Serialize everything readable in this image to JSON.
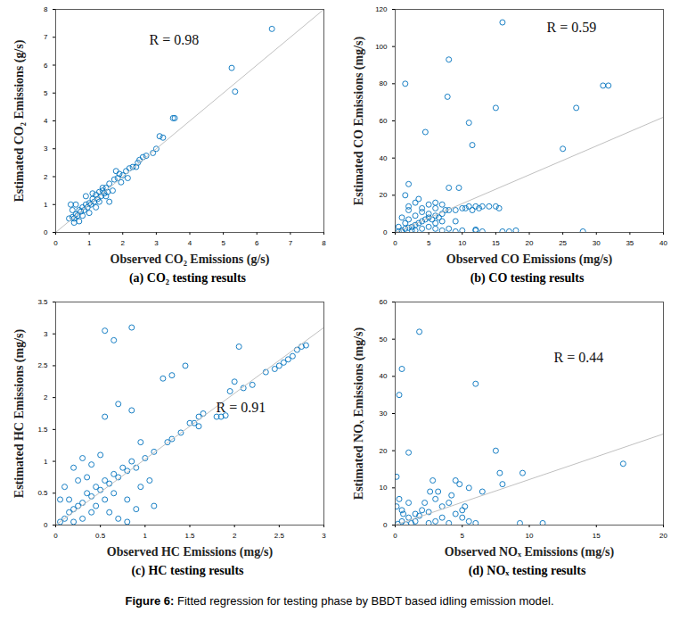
{
  "chart_data": [
    {
      "type": "scatter",
      "title": "(a) CO₂ testing results",
      "x_label": "Observed CO₂ Emissions (g/s)",
      "y_label": "Estimated CO₂ Emissions (g/s)",
      "annotations": [
        "R = 0.98"
      ],
      "xlim": [
        0,
        8
      ],
      "xticks": [
        0,
        1,
        2,
        3,
        4,
        5,
        6,
        7,
        8
      ],
      "ylim": [
        0,
        8
      ],
      "yticks": [
        0,
        1,
        2,
        3,
        4,
        5,
        6,
        7,
        8
      ],
      "series": [
        {
          "type": "scatter",
          "color": "#0072bd",
          "marker": "circle",
          "x": [
            5.25,
            5.35,
            6.45,
            3.5,
            3.55,
            3.1,
            3.2,
            3.0,
            2.9,
            2.7,
            2.6,
            2.5,
            2.45,
            2.3,
            2.2,
            2.0,
            1.9,
            1.8,
            1.85,
            1.75,
            1.6,
            1.5,
            1.4,
            1.3,
            1.2,
            1.1,
            1.0,
            0.9,
            0.8,
            0.7,
            0.6,
            0.5,
            0.4,
            0.45,
            0.6,
            0.8,
            1.0,
            0.7,
            1.2,
            1.5,
            1.6,
            1.7,
            1.4,
            1.1,
            0.9,
            1.3,
            0.55,
            0.65,
            0.75,
            0.85,
            0.95,
            1.05,
            1.15,
            1.25,
            1.35,
            1.45,
            2.1,
            2.15,
            2.4,
            1.95,
            1.55,
            0.5,
            0.55
          ],
          "values": [
            5.9,
            5.05,
            7.3,
            4.1,
            4.1,
            3.45,
            3.4,
            3.0,
            2.85,
            2.75,
            2.7,
            2.6,
            2.5,
            2.35,
            2.3,
            2.05,
            2.1,
            2.2,
            1.95,
            1.9,
            1.75,
            1.6,
            1.5,
            1.45,
            1.35,
            1.2,
            1.05,
            1.0,
            0.9,
            0.8,
            0.65,
            0.55,
            0.5,
            1.0,
            1.0,
            0.6,
            0.7,
            0.4,
            0.9,
            1.3,
            1.1,
            1.5,
            1.6,
            1.4,
            1.3,
            1.1,
            0.35,
            0.6,
            0.75,
            0.8,
            0.9,
            1.0,
            1.1,
            1.2,
            1.3,
            1.4,
            2.2,
            1.95,
            2.35,
            1.8,
            1.45,
            0.8,
            0.5
          ]
        },
        {
          "type": "line",
          "color": "#c0c0c0",
          "line_style": "solid",
          "x": [
            0,
            8
          ],
          "values": [
            0,
            8
          ]
        }
      ]
    },
    {
      "type": "scatter",
      "title": "(b) CO testing results",
      "x_label": "Observed CO Emissions (mg/s)",
      "y_label": "Estimated CO Emissions (mg/s)",
      "annotations": [
        "R = 0.59"
      ],
      "xlim": [
        0,
        40
      ],
      "xticks": [
        0,
        5,
        10,
        15,
        20,
        25,
        30,
        35,
        40
      ],
      "ylim": [
        0,
        120
      ],
      "yticks": [
        0,
        20,
        40,
        60,
        80,
        100,
        120
      ],
      "series": [
        {
          "type": "scatter",
          "color": "#0072bd",
          "marker": "circle",
          "x": [
            1.5,
            8,
            7.8,
            16,
            4.5,
            11,
            11.5,
            15,
            27,
            31,
            31.8,
            25,
            2,
            28,
            5,
            9.5,
            8,
            10.5,
            11,
            12,
            13,
            14,
            11.5,
            12.5,
            10,
            15,
            15.5,
            16,
            17,
            18,
            13,
            12,
            10,
            9,
            7,
            6,
            5,
            3,
            4,
            2,
            1,
            0.5,
            1,
            1.5,
            2,
            2.5,
            3,
            3.5,
            4,
            4.5,
            5,
            5.5,
            6,
            6.5,
            7,
            7.5,
            8,
            9,
            3,
            4,
            5,
            6,
            2,
            3,
            4,
            1.5,
            2.5,
            0.5,
            1,
            8,
            6,
            7,
            2,
            1.5,
            3.5,
            6,
            7,
            9,
            12
          ],
          "values": [
            80,
            93,
            73,
            113,
            54,
            59,
            47,
            67,
            67,
            79,
            79,
            45,
            26,
            0.5,
            10,
            24,
            24,
            13,
            14,
            14,
            14,
            14,
            12,
            13,
            13,
            14,
            13,
            0.5,
            0.5,
            1,
            0.5,
            1,
            1,
            0.5,
            1,
            16,
            15,
            16,
            13,
            12,
            8,
            3,
            1,
            2,
            2.5,
            3,
            4,
            5,
            6,
            7,
            8,
            7,
            9,
            8,
            10,
            12,
            12,
            12,
            1,
            2,
            3,
            2,
            7,
            9,
            11,
            5,
            1,
            0.5,
            0.3,
            2,
            5,
            6,
            14,
            20,
            18,
            13,
            15,
            6,
            1.5
          ]
        },
        {
          "type": "line",
          "color": "#c0c0c0",
          "line_style": "solid",
          "x": [
            0,
            40
          ],
          "values": [
            0,
            62
          ]
        }
      ]
    },
    {
      "type": "scatter",
      "title": "(c) HC testing results",
      "x_label": "Observed HC Emissions (mg/s)",
      "y_label": "Estimated HC Emissions (mg/s)",
      "annotations": [
        "R = 0.91"
      ],
      "xlim": [
        0,
        3
      ],
      "xticks": [
        0,
        0.5,
        1,
        1.5,
        2,
        2.5,
        3
      ],
      "ylim": [
        0,
        3.5
      ],
      "yticks": [
        0,
        0.5,
        1,
        1.5,
        2,
        2.5,
        3,
        3.5
      ],
      "series": [
        {
          "type": "scatter",
          "color": "#0072bd",
          "marker": "circle",
          "x": [
            0.55,
            0.85,
            0.65,
            1.3,
            1.45,
            1.2,
            2.05,
            0.7,
            0.85,
            0.55,
            2.5,
            2.55,
            2.6,
            2.65,
            2.7,
            2.75,
            2.8,
            2.45,
            2.35,
            2.2,
            2.1,
            1.95,
            1.85,
            1.8,
            1.65,
            1.6,
            1.55,
            1.5,
            1.4,
            1.3,
            1.25,
            1.1,
            1.0,
            0.95,
            0.9,
            0.85,
            0.8,
            0.75,
            0.7,
            0.65,
            0.6,
            0.55,
            0.5,
            0.45,
            0.4,
            0.35,
            0.3,
            0.25,
            0.2,
            0.15,
            0.1,
            0.05,
            0.1,
            0.2,
            0.3,
            0.4,
            0.5,
            0.6,
            0.7,
            0.8,
            0.9,
            1.1,
            0.2,
            0.3,
            0.4,
            0.15,
            0.25,
            0.05,
            0.35,
            0.45,
            0.55,
            0.65,
            1.05,
            0.95,
            0.8,
            1.6,
            2.0,
            1.9
          ],
          "values": [
            3.05,
            3.1,
            2.9,
            2.35,
            2.5,
            2.3,
            2.8,
            1.9,
            1.8,
            1.7,
            2.5,
            2.55,
            2.6,
            2.65,
            2.75,
            2.8,
            2.82,
            2.45,
            2.4,
            2.2,
            2.15,
            2.1,
            1.7,
            1.7,
            1.75,
            1.7,
            1.6,
            1.6,
            1.45,
            1.35,
            1.3,
            1.15,
            1.05,
            1.3,
            0.9,
            1.0,
            0.85,
            0.9,
            0.75,
            0.8,
            0.65,
            0.7,
            0.55,
            0.6,
            0.45,
            0.5,
            0.35,
            0.3,
            0.25,
            0.2,
            0.1,
            0.05,
            0.6,
            0.9,
            1.05,
            0.95,
            1.1,
            0.2,
            0.1,
            0.05,
            0.25,
            0.3,
            0.05,
            0.1,
            0.2,
            0.4,
            0.7,
            0.4,
            0.75,
            0.3,
            0.4,
            0.5,
            0.7,
            0.6,
            0.4,
            1.55,
            2.25,
            1.72
          ]
        },
        {
          "type": "line",
          "color": "#c0c0c0",
          "line_style": "solid",
          "x": [
            0,
            3
          ],
          "values": [
            0,
            3.1
          ]
        }
      ]
    },
    {
      "type": "scatter",
      "title": "(d) NOₓ testing results",
      "x_label": "Observed NOₓ Emissions (mg/s)",
      "y_label": "Estimated NOₓ Emissions (mg/s)",
      "annotations": [
        "R = 0.44"
      ],
      "xlim": [
        0,
        20
      ],
      "xticks": [
        0,
        5,
        10,
        15,
        20
      ],
      "ylim": [
        0,
        60
      ],
      "yticks": [
        0,
        10,
        20,
        30,
        40,
        50,
        60
      ],
      "series": [
        {
          "type": "scatter",
          "color": "#0072bd",
          "marker": "circle",
          "x": [
            0.3,
            0.5,
            1.8,
            1,
            6,
            7.5,
            8,
            7.8,
            9.5,
            17,
            9.3,
            11,
            5.5,
            6,
            4.8,
            5.5,
            2.8,
            2.6,
            3,
            3.5,
            4,
            2,
            1.5,
            1,
            0.5,
            0.2,
            0.3,
            0.1,
            0.5,
            1,
            1.5,
            2.5,
            3,
            3.5,
            4,
            4.5,
            5,
            5,
            4.2,
            2.2,
            3.2,
            0.8,
            1.2,
            0.1,
            0.6,
            1.8,
            2.5,
            5.2,
            6.5,
            4.5
          ],
          "values": [
            35,
            42,
            52,
            19.5,
            38,
            20,
            11,
            14,
            14,
            16.5,
            0.5,
            0.5,
            1,
            0.5,
            11,
            10,
            12,
            9,
            7,
            5,
            6,
            4,
            3,
            2,
            1,
            0.3,
            7,
            13,
            4,
            6,
            1,
            0.5,
            1,
            2,
            0.5,
            3,
            2,
            4,
            8,
            6,
            9,
            0.2,
            0.5,
            5,
            3,
            2.5,
            3.5,
            5,
            9,
            12
          ]
        },
        {
          "type": "line",
          "color": "#c0c0c0",
          "line_style": "solid",
          "x": [
            0,
            20
          ],
          "values": [
            0,
            24.5
          ]
        }
      ]
    }
  ],
  "caption": "Figure 6: Fitted regression for testing phase by BBDT based idling emission model."
}
